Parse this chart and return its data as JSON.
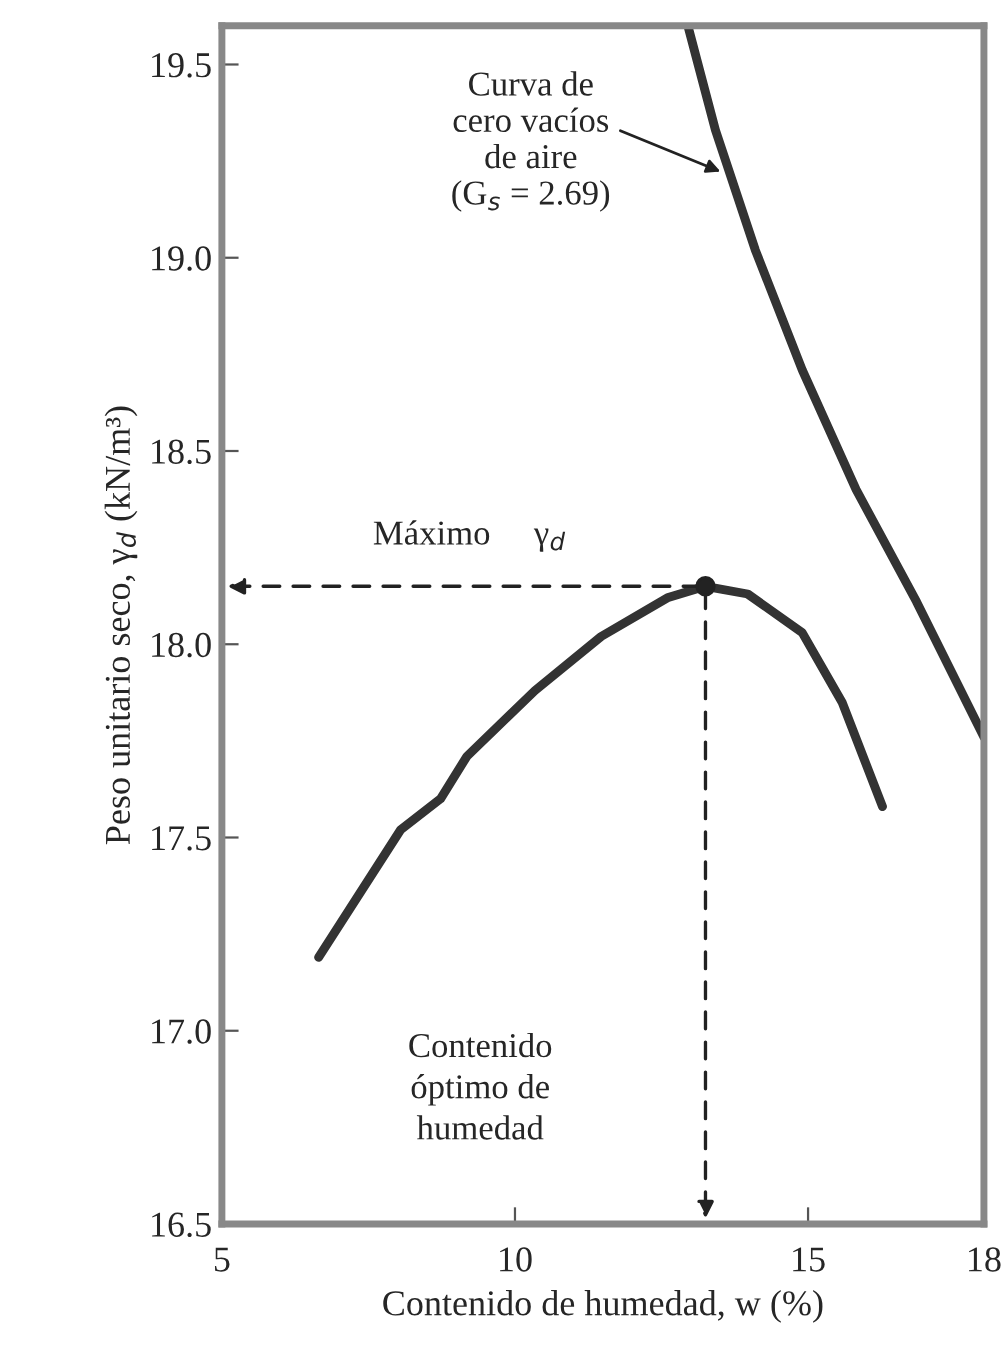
{
  "chart_data": {
    "type": "line",
    "xlabel": "Contenido de humedad, w (%)",
    "ylabel": "Peso unitario seco, γ$_{d}$ (kN/m³)",
    "xlim": [
      5,
      18
    ],
    "xticks": [
      5,
      10,
      15,
      18
    ],
    "ylim": [
      16.5,
      19.6
    ],
    "yticks": [
      {
        "value": 16.5,
        "label": "16.5"
      },
      {
        "value": 17,
        "label": "17.0"
      },
      {
        "value": 17.5,
        "label": "17.5"
      },
      {
        "value": 18,
        "label": "18.0"
      },
      {
        "value": 18.5,
        "label": "18.5"
      },
      {
        "value": 19,
        "label": "19.0"
      },
      {
        "value": 19.5,
        "label": "19.5"
      }
    ],
    "grid": false,
    "legend": false,
    "line_style": "solid",
    "series": [
      {
        "color": "#333333",
        "x": [
          6.65,
          8.05,
          8.73,
          9.18,
          10.34,
          11.47,
          12.6,
          13.25,
          13.97,
          14.9,
          15.58,
          16.27
        ],
        "values": [
          17.19,
          17.52,
          17.6,
          17.71,
          17.88,
          18.02,
          18.12,
          18.15,
          18.13,
          18.03,
          17.85,
          17.58
        ]
      },
      {
        "color": "#333333",
        "x": [
          12.95,
          13.42,
          14.1,
          14.9,
          15.82,
          16.85,
          18.0
        ],
        "values": [
          19.6,
          19.33,
          19.02,
          18.71,
          18.4,
          18.11,
          17.76
        ]
      },
      {
        "type": "scatter",
        "color": "#222222",
        "marker": "circle",
        "x": [
          13.25
        ],
        "values": [
          18.15
        ]
      }
    ],
    "annotations": [
      {
        "text": "Curva de\ncero vacíos\nde aire\n(G$_{s}$ = 2.69)",
        "x": 13.55,
        "y": 19.22
      },
      "Máximo     γ$_{d}$",
      "Contenido\nóptimo de\nhumedad"
    ]
  }
}
